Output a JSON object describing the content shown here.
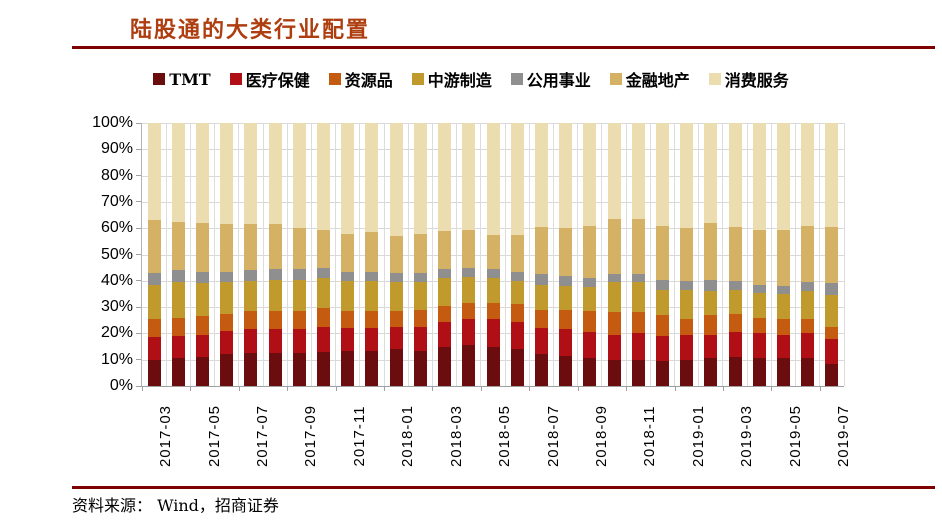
{
  "header": {
    "title": "陆股通的大类行业配置",
    "title_color": "#AE3E0F",
    "rule_color": "#7F0000"
  },
  "footer": {
    "source": "资料来源： Wind，招商证券"
  },
  "chart_data": {
    "type": "bar",
    "stacked": true,
    "percent_stacked": true,
    "title": "陆股通的大类行业配置",
    "xlabel": "",
    "ylabel": "",
    "ylim": [
      0,
      100
    ],
    "grid": true,
    "legend_position": "top",
    "y_ticks": [
      "0%",
      "10%",
      "20%",
      "30%",
      "40%",
      "50%",
      "60%",
      "70%",
      "80%",
      "90%",
      "100%"
    ],
    "x_tick_labels": [
      "2017-03",
      "2017-05",
      "2017-07",
      "2017-09",
      "2017-11",
      "2018-01",
      "2018-03",
      "2018-05",
      "2018-07",
      "2018-09",
      "2018-11",
      "2019-01",
      "2019-03",
      "2019-05",
      "2019-07"
    ],
    "categories": [
      "2017-03",
      "2017-04",
      "2017-05",
      "2017-06",
      "2017-07",
      "2017-08",
      "2017-09",
      "2017-10",
      "2017-11",
      "2017-12",
      "2018-01",
      "2018-02",
      "2018-03",
      "2018-04",
      "2018-05",
      "2018-06",
      "2018-07",
      "2018-08",
      "2018-09",
      "2018-10",
      "2018-11",
      "2018-12",
      "2019-01",
      "2019-02",
      "2019-03",
      "2019-04",
      "2019-05",
      "2019-06",
      "2019-07"
    ],
    "series": [
      {
        "name": "TMT",
        "color": "#6B0D0E",
        "values": [
          10,
          10.5,
          11,
          12,
          12.5,
          12.5,
          12.5,
          13,
          13.5,
          13.5,
          14,
          13.5,
          15,
          15.5,
          15,
          14,
          12,
          11.5,
          10.5,
          10,
          10,
          9.5,
          10,
          10.5,
          11,
          10.5,
          10.5,
          10.5,
          8.5
        ]
      },
      {
        "name": "医疗保健",
        "color": "#B01015",
        "values": [
          8.5,
          8.5,
          8.5,
          9,
          9,
          9,
          9,
          9.5,
          8.5,
          8.5,
          8.5,
          9,
          9.5,
          10,
          10.5,
          10.5,
          10,
          10,
          10,
          9.5,
          10,
          9.5,
          9.5,
          9,
          9.5,
          9.5,
          9,
          9.5,
          9.5
        ]
      },
      {
        "name": "资源品",
        "color": "#C55A11",
        "values": [
          7,
          7,
          7,
          6.5,
          7,
          7,
          7,
          7,
          6.5,
          6.5,
          6,
          6.5,
          6,
          6,
          6,
          6.5,
          7,
          7.5,
          8,
          8.5,
          8,
          8,
          6,
          7.5,
          7,
          6,
          6,
          5.5,
          4.5
        ]
      },
      {
        "name": "中游制造",
        "color": "#C09A2D",
        "values": [
          13,
          13.5,
          12.5,
          12,
          11.5,
          12,
          12,
          11.5,
          11.5,
          11.5,
          11,
          10.5,
          10.5,
          10,
          9.5,
          9,
          9.5,
          9,
          9,
          11.5,
          11.5,
          9.5,
          11,
          9,
          9,
          9.5,
          9.5,
          10.5,
          12
        ]
      },
      {
        "name": "公用事业",
        "color": "#8F8F8F",
        "values": [
          4.5,
          4.5,
          4.5,
          4,
          4,
          4,
          4,
          4,
          3.5,
          3.5,
          3.5,
          3.5,
          3.5,
          3.5,
          3.5,
          3.5,
          4,
          4,
          3.5,
          3,
          3,
          4,
          3.5,
          4.5,
          3.5,
          3,
          3,
          3.5,
          4.5
        ]
      },
      {
        "name": "金融地产",
        "color": "#D5B166",
        "values": [
          20,
          18.5,
          18.5,
          18,
          17.5,
          17,
          15.5,
          14.5,
          14.5,
          15,
          14,
          15,
          14.5,
          14.5,
          13,
          14,
          18,
          18,
          20,
          21,
          21,
          20.5,
          20,
          21.5,
          20.5,
          21,
          21.5,
          21.5,
          21.5
        ]
      },
      {
        "name": "消费服务",
        "color": "#EBDDB0",
        "values": [
          37,
          37.5,
          38,
          38.5,
          38.5,
          38.5,
          40,
          40.5,
          42,
          41.5,
          43,
          42,
          41,
          40.5,
          42.5,
          42.5,
          39.5,
          40,
          39,
          36.5,
          36.5,
          39,
          40,
          38,
          39.5,
          40.5,
          40.5,
          39,
          39.5
        ]
      }
    ]
  }
}
